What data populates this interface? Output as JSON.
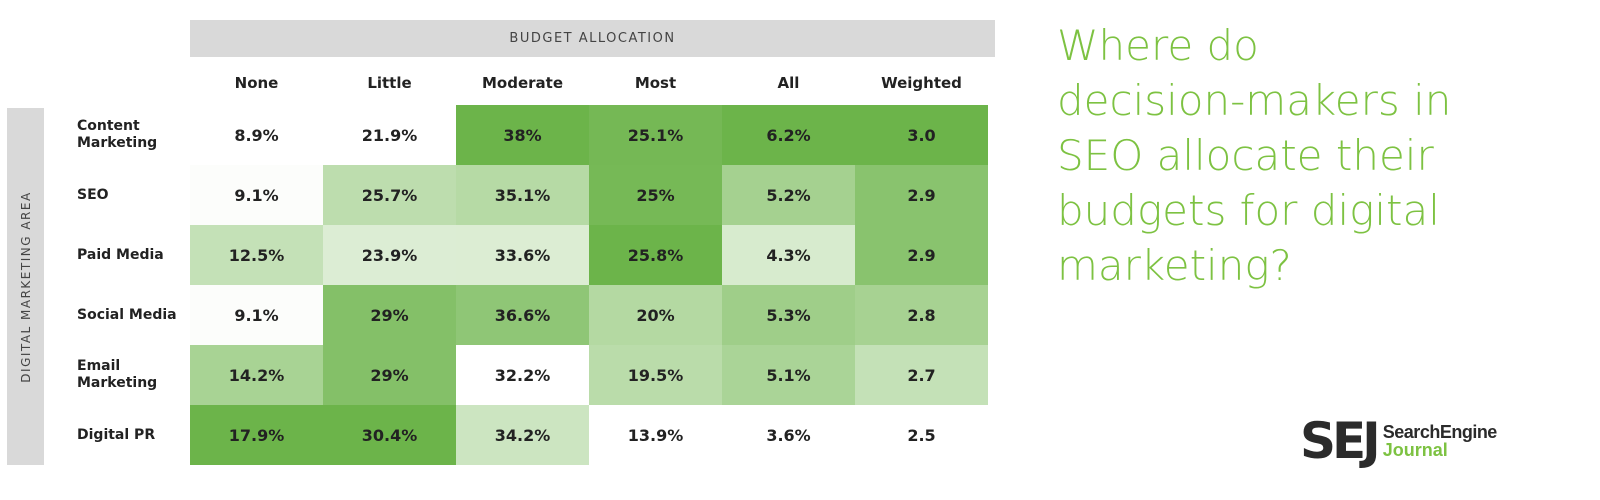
{
  "header": {
    "title": "BUDGET ALLOCATION",
    "side_label": "DIGITAL MARKETING AREA"
  },
  "table": {
    "columns": [
      "None",
      "Little",
      "Moderate",
      "Most",
      "All",
      "Weighted"
    ],
    "rows": [
      {
        "label": "Content Marketing",
        "cells": [
          "8.9%",
          "21.9%",
          "38%",
          "25.1%",
          "6.2%",
          "3.0"
        ]
      },
      {
        "label": "SEO",
        "cells": [
          "9.1%",
          "25.7%",
          "35.1%",
          "25%",
          "5.2%",
          "2.9"
        ]
      },
      {
        "label": "Paid Media",
        "cells": [
          "12.5%",
          "23.9%",
          "33.6%",
          "25.8%",
          "4.3%",
          "2.9"
        ]
      },
      {
        "label": "Social Media",
        "cells": [
          "9.1%",
          "29%",
          "36.6%",
          "20%",
          "5.3%",
          "2.8"
        ]
      },
      {
        "label": "Email Marketing",
        "cells": [
          "14.2%",
          "29%",
          "32.2%",
          "19.5%",
          "5.1%",
          "2.7"
        ]
      },
      {
        "label": "Digital PR",
        "cells": [
          "17.9%",
          "30.4%",
          "34.2%",
          "13.9%",
          "3.6%",
          "2.5"
        ]
      }
    ]
  },
  "headline": "Where do decision-makers in SEO allocate their budgets for digital marketing?",
  "logo": {
    "mark": "SEJ",
    "line1": "SearchEngine",
    "line2": "Journal"
  }
}
